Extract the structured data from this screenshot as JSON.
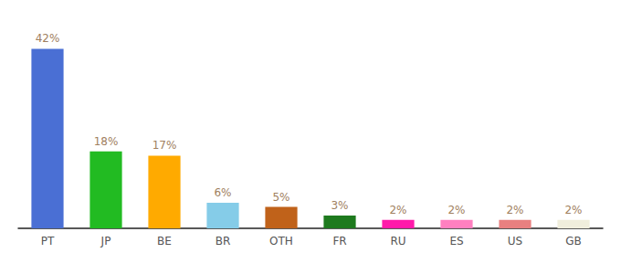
{
  "chart_data": {
    "type": "bar",
    "categories": [
      "PT",
      "JP",
      "BE",
      "BR",
      "OTH",
      "FR",
      "RU",
      "ES",
      "US",
      "GB"
    ],
    "values": [
      42,
      18,
      17,
      6,
      5,
      3,
      2,
      2,
      2,
      2
    ],
    "value_labels": [
      "42%",
      "18%",
      "17%",
      "6%",
      "5%",
      "3%",
      "2%",
      "2%",
      "2%",
      "2%"
    ],
    "colors": [
      "#4a6fd4",
      "#22bb22",
      "#ffaa00",
      "#85cce8",
      "#c0621a",
      "#1e7a1e",
      "#ff1aaa",
      "#ff80c0",
      "#e88080",
      "#f0eedc"
    ],
    "ylim": [
      0,
      47
    ],
    "grid": false,
    "data_labels": true,
    "tick_labels": "x"
  }
}
